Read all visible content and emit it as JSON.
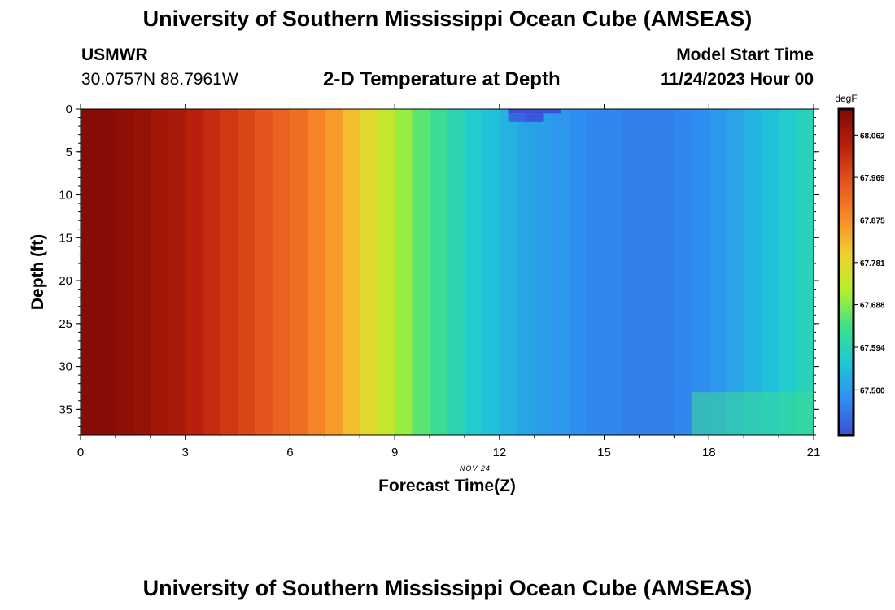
{
  "header": {
    "title": "University of Southern Mississippi Ocean Cube (AMSEAS)",
    "station": "USMWR",
    "coords": "30.0757N  88.7961W",
    "plot_title": "2-D Temperature at Depth",
    "model_start_label": "Model Start Time",
    "model_start_value": "11/24/2023 Hour 00"
  },
  "footer": {
    "title": "University of Southern Mississippi Ocean Cube (AMSEAS)"
  },
  "chart_data": {
    "type": "heatmap",
    "title": "2-D Temperature at Depth",
    "xlabel": "Forecast Time(Z)",
    "ylabel": "Depth (ft)",
    "date_label": "NOV 24",
    "x_range": [
      0,
      21
    ],
    "y_range": [
      0,
      38
    ],
    "y_inverted": true,
    "x_ticks": [
      0,
      3,
      6,
      9,
      12,
      15,
      18,
      21
    ],
    "x_tick_labels": [
      "0",
      "3",
      "6",
      "9",
      "12",
      "15",
      "18",
      "21"
    ],
    "y_ticks": [
      0,
      5,
      10,
      15,
      20,
      25,
      30,
      35
    ],
    "y_tick_labels": [
      "0",
      "5",
      "10",
      "15",
      "20",
      "25",
      "30",
      "35"
    ],
    "time_bin_hours": 0.5,
    "temperature_by_time_bin": [
      68.11,
      68.11,
      68.1,
      68.09,
      68.07,
      68.06,
      68.04,
      68.02,
      68.0,
      67.98,
      67.96,
      67.94,
      67.92,
      67.89,
      67.86,
      67.82,
      67.78,
      67.74,
      67.7,
      67.66,
      67.63,
      67.6,
      67.57,
      67.55,
      67.53,
      67.51,
      67.5,
      67.49,
      67.48,
      67.47,
      67.47,
      67.46,
      67.46,
      67.46,
      67.47,
      67.48,
      67.49,
      67.51,
      67.53,
      67.55,
      67.57,
      67.59
    ],
    "anomalies": [
      {
        "x0": 12.25,
        "x1": 12.75,
        "y0": 0,
        "y1": 0.5,
        "value": 67.38
      },
      {
        "x0": 12.75,
        "x1": 13.25,
        "y0": 0,
        "y1": 0.5,
        "value": 67.34
      },
      {
        "x0": 13.25,
        "x1": 13.75,
        "y0": 0,
        "y1": 0.5,
        "value": 67.4
      },
      {
        "x0": 12.25,
        "x1": 12.75,
        "y0": 0.5,
        "y1": 1.5,
        "value": 67.43
      },
      {
        "x0": 12.75,
        "x1": 13.25,
        "y0": 0.5,
        "y1": 1.5,
        "value": 67.41
      },
      {
        "x0": 17.5,
        "x1": 21,
        "y0": 33,
        "y1": 38,
        "value": 67.63
      }
    ],
    "colorbar": {
      "unit": "degF",
      "min": 67.4,
      "max": 68.12,
      "ticks": [
        68.062,
        67.969,
        67.875,
        67.781,
        67.688,
        67.594,
        67.5
      ],
      "tick_labels": [
        "68.062",
        "67.969",
        "67.875",
        "67.781",
        "67.688",
        "67.594",
        "67.500"
      ]
    },
    "colormap": [
      "#3b4fd6",
      "#2f8ff0",
      "#1ec8d6",
      "#3fe08a",
      "#b4f02a",
      "#f2cf2f",
      "#f88a28",
      "#e4541c",
      "#b91f0c",
      "#7e0a04"
    ]
  }
}
